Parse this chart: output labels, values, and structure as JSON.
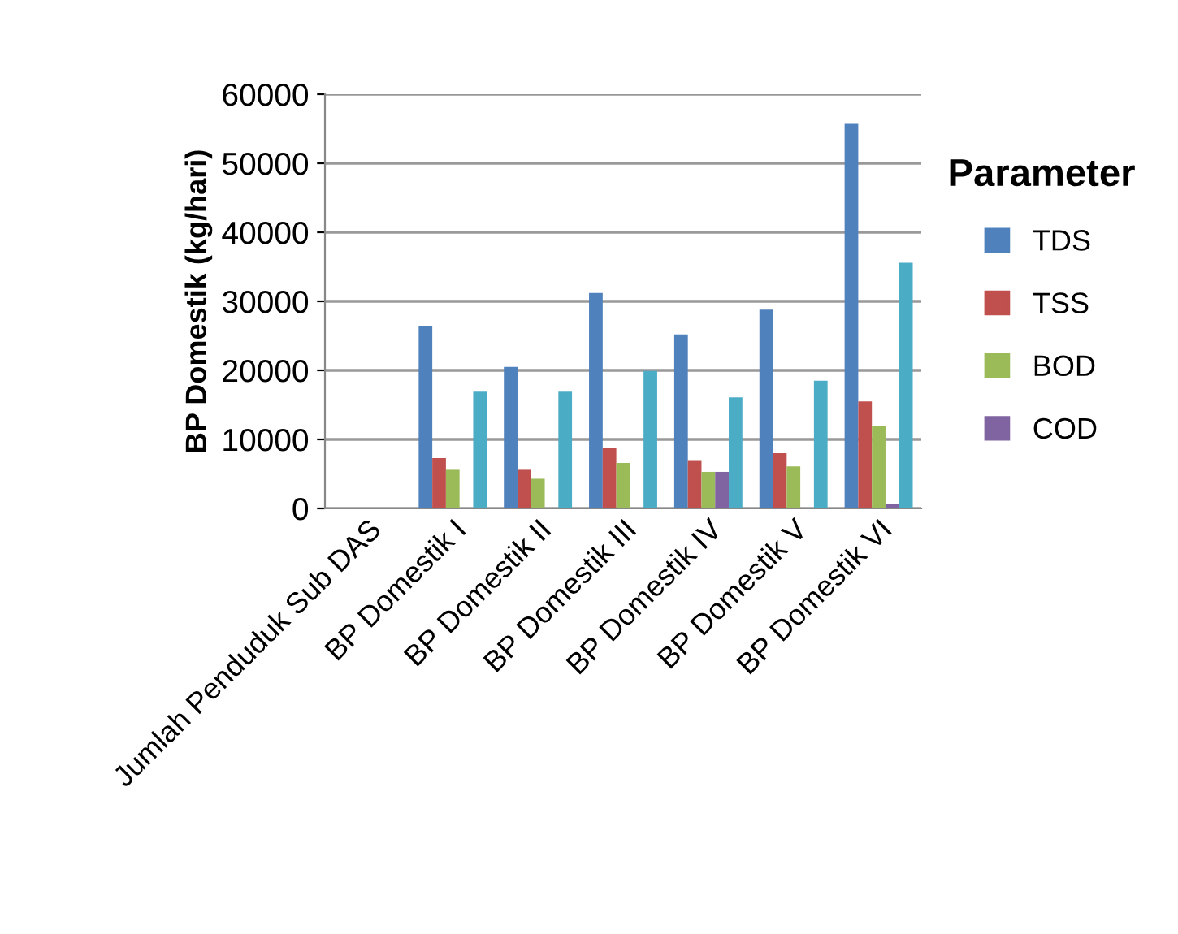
{
  "chart_data": {
    "type": "bar",
    "ylabel": "BP Domestik (kg/hari)",
    "legend_title": "Parameter",
    "categories": [
      "Jumlah Penduduk Sub DAS",
      "BP Domestik I",
      "BP Domestik II",
      "BP Domestik III",
      "BP Domestik IV",
      "BP Domestik V",
      "BP Domestik VI"
    ],
    "series": [
      {
        "name": "TDS",
        "color": "#4f81bd",
        "values": [
          0,
          26400,
          20500,
          31200,
          25200,
          28800,
          55700
        ]
      },
      {
        "name": "TSS",
        "color": "#c0504d",
        "values": [
          0,
          7300,
          5600,
          8700,
          7000,
          8000,
          15500
        ]
      },
      {
        "name": "BOD",
        "color": "#9bbb59",
        "values": [
          0,
          5600,
          4300,
          6600,
          5300,
          6100,
          12000
        ]
      },
      {
        "name": "COD",
        "color": "#8064a2",
        "values": [
          0,
          null,
          0,
          null,
          5300,
          null,
          600
        ]
      },
      {
        "color": "#4bacc6",
        "values": [
          0,
          16900,
          16900,
          19900,
          16100,
          18500,
          35600
        ]
      }
    ],
    "ylim": [
      0,
      60000
    ],
    "yticks": [
      0,
      10000,
      20000,
      30000,
      40000,
      50000,
      60000
    ],
    "grid": "y",
    "legend": "right"
  }
}
